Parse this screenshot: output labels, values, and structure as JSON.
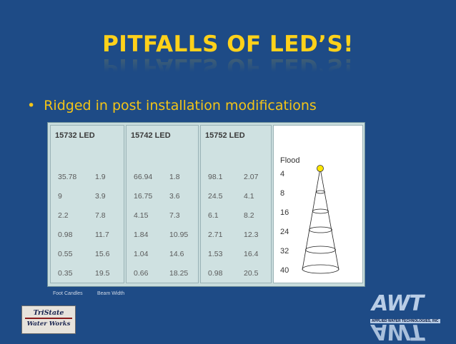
{
  "title": "PITFALLS OF LED’S!",
  "bullet": {
    "marker": "•",
    "text": "Ridged in post installation modifications"
  },
  "table": {
    "columns": [
      {
        "header": "15732 LED",
        "rows": [
          [
            "35.78",
            "1.9"
          ],
          [
            "9",
            "3.9"
          ],
          [
            "2.2",
            "7.8"
          ],
          [
            "0.98",
            "11.7"
          ],
          [
            "0.55",
            "15.6"
          ],
          [
            "0.35",
            "19.5"
          ]
        ]
      },
      {
        "header": "15742 LED",
        "rows": [
          [
            "66.94",
            "1.8"
          ],
          [
            "16.75",
            "3.6"
          ],
          [
            "4.15",
            "7.3"
          ],
          [
            "1.84",
            "10.95"
          ],
          [
            "1.04",
            "14.6"
          ],
          [
            "0.66",
            "18.25"
          ]
        ]
      },
      {
        "header": "15752 LED",
        "rows": [
          [
            "98.1",
            "2.07"
          ],
          [
            "24.5",
            "4.1"
          ],
          [
            "6.1",
            "8.2"
          ],
          [
            "2.71",
            "12.3"
          ],
          [
            "1.53",
            "16.4"
          ],
          [
            "0.98",
            "20.5"
          ]
        ]
      }
    ],
    "flood": {
      "label": "Flood",
      "distances": [
        "4",
        "8",
        "16",
        "24",
        "32",
        "40"
      ]
    }
  },
  "legend": {
    "foot_candles": "Foot Candles",
    "beam_width": "Beam Width"
  },
  "logos": {
    "tristate_line1": "TriState",
    "tristate_line2": "Water Works",
    "awt_letters": "AWT",
    "awt_tagline": "APPLIED WATER TECHNOLOGIES, INC"
  },
  "colors": {
    "background": "#1e4b86",
    "title": "#ffd11a",
    "bullet": "#f3c417"
  }
}
